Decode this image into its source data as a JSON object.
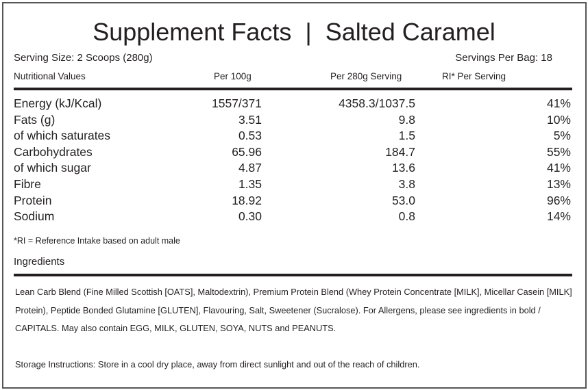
{
  "title": "Supplement Facts  |  Salted Caramel",
  "serving_size": "Serving Size: 2 Scoops (280g)",
  "servings_per_bag": "Servings Per Bag: 18",
  "headers": [
    "Nutritional Values",
    "Per 100g",
    "Per 280g Serving",
    "RI* Per Serving"
  ],
  "rows": [
    [
      "Energy (kJ/Kcal)",
      "1557/371",
      "4358.3/1037.5",
      "41%"
    ],
    [
      "Fats (g)",
      "3.51",
      "9.8",
      "10%"
    ],
    [
      "of which saturates",
      "0.53",
      "1.5",
      "5%"
    ],
    [
      "Carbohydrates",
      "65.96",
      "184.7",
      "55%"
    ],
    [
      "of which sugar",
      "4.87",
      "13.6",
      "41%"
    ],
    [
      "Fibre",
      "1.35",
      "3.8",
      "13%"
    ],
    [
      "Protein",
      "18.92",
      "53.0",
      "96%"
    ],
    [
      "Sodium",
      "0.30",
      "0.8",
      "14%"
    ]
  ],
  "footnote": "*RI = Reference Intake based on adult male",
  "ingredients_heading": "Ingredients",
  "ingredients": "Lean Carb Blend (Fine Milled Scottish [OATS], Maltodextrin), Premium Protein Blend (Whey Protein Concentrate [MILK], Micellar Casein [MILK] Protein), Peptide Bonded Glutamine [GLUTEN], Flavouring, Salt, Sweetener (Sucralose). For Allergens, please see ingredients in bold / CAPITALS. May also contain EGG, MILK, GLUTEN, SOYA, NUTS and PEANUTS.",
  "storage": "Storage Instructions: Store in a cool dry place, away from direct sunlight and out of the reach of children."
}
